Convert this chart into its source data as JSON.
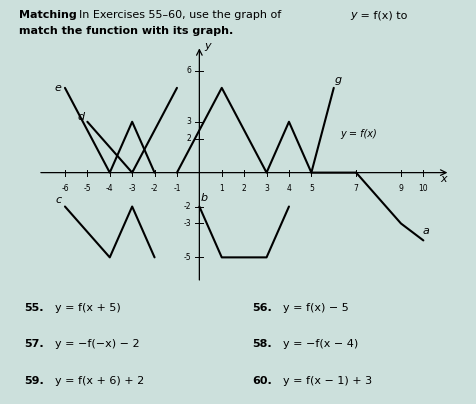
{
  "title_bold": "Matching",
  "title_normal": "  In Exercises 55–60, use the graph of ",
  "title_italic": "y",
  "title_end": " = f(x) to",
  "title_line2": "match the function with its graph.",
  "exercises": [
    {
      "num": "55.",
      "text": "y = f(x + 5)"
    },
    {
      "num": "56.",
      "text": "y = f(x) − 5"
    },
    {
      "num": "57.",
      "text": "y = −f(−x) − 2"
    },
    {
      "num": "58.",
      "text": "y = −f(x − 4)"
    },
    {
      "num": "59.",
      "text": "y = f(x + 6) + 2"
    },
    {
      "num": "60.",
      "text": "y = f(x − 1) + 3"
    }
  ],
  "xlim": [
    -7.2,
    11.5
  ],
  "ylim": [
    -6.5,
    7.8
  ],
  "xticks": [
    -6,
    -5,
    -4,
    -3,
    -2,
    -1,
    1,
    2,
    3,
    4,
    5,
    7,
    9,
    10
  ],
  "yticks": [
    -5,
    -3,
    -2,
    2,
    3,
    6
  ],
  "fx_label": "y = f(x)",
  "fx_x": 6.3,
  "fx_y": 2.3,
  "curve_f": [
    [
      -1,
      0
    ],
    [
      1,
      5
    ],
    [
      3,
      0
    ],
    [
      4,
      3
    ],
    [
      5,
      0
    ],
    [
      7,
      0
    ]
  ],
  "curve_e": [
    [
      -6,
      5
    ],
    [
      -4,
      0
    ],
    [
      -3,
      3
    ],
    [
      -2,
      0
    ]
  ],
  "curve_d": [
    [
      -5,
      3
    ],
    [
      -3,
      0
    ],
    [
      -1,
      5
    ]
  ],
  "curve_g": [
    [
      5,
      0
    ],
    [
      6,
      5
    ]
  ],
  "curve_b": [
    [
      0,
      -2
    ],
    [
      1,
      -5
    ],
    [
      3,
      -5
    ],
    [
      4,
      -2
    ]
  ],
  "curve_c": [
    [
      -6,
      -2
    ],
    [
      -4,
      -5
    ],
    [
      -3,
      -2
    ],
    [
      -2,
      -5
    ]
  ],
  "curve_a": [
    [
      7,
      0
    ],
    [
      9,
      -3
    ],
    [
      10,
      -4
    ]
  ],
  "label_e": [
    -6.3,
    4.8
  ],
  "label_d": [
    -5.3,
    3.1
  ],
  "label_g": [
    6.2,
    5.3
  ],
  "label_b": [
    0.2,
    -1.7
  ],
  "label_c": [
    -6.3,
    -1.8
  ],
  "label_a": [
    10.1,
    -3.6
  ],
  "background_color": "#cce0dc"
}
